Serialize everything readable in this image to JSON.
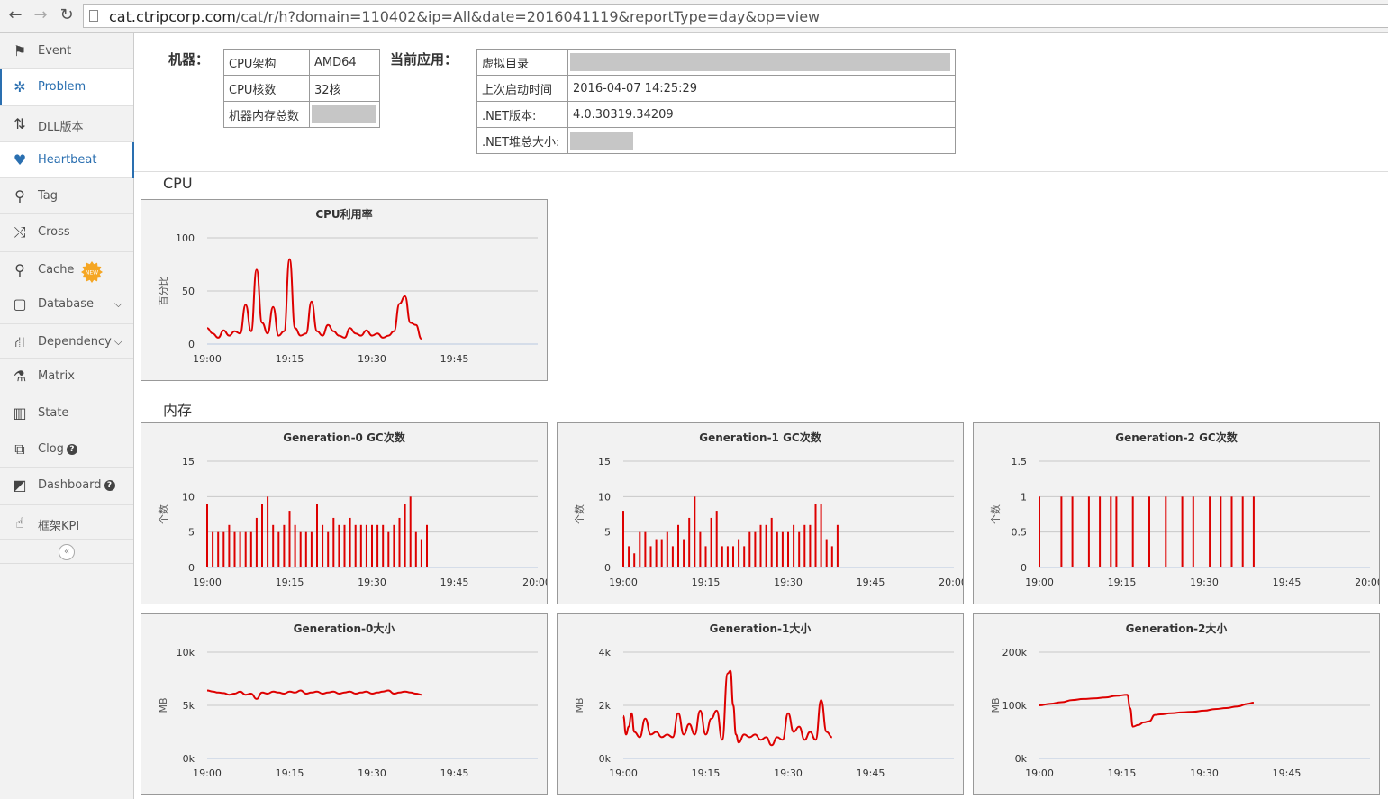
{
  "browser": {
    "url_host": "cat.ctripcorp.com",
    "url_path": "/cat/r/h?domain=110402&ip=All&date=2016041119&reportType=day&op=view"
  },
  "sidebar": {
    "items": [
      {
        "label": "Event",
        "icon": "flag-icon",
        "glyph": "⚑"
      },
      {
        "label": "Problem",
        "icon": "bug-icon",
        "glyph": "✲"
      },
      {
        "label": "DLL版本",
        "icon": "sort-icon",
        "glyph": "⇅"
      },
      {
        "label": "Heartbeat",
        "icon": "heart-icon",
        "glyph": "♥"
      },
      {
        "label": "Tag",
        "icon": "search-icon",
        "glyph": "⚲"
      },
      {
        "label": "Cross",
        "icon": "shuffle-icon",
        "glyph": "⤭"
      },
      {
        "label": "Cache",
        "icon": "search-icon",
        "glyph": "⚲",
        "badge": "NEW"
      },
      {
        "label": "Database",
        "icon": "database-icon",
        "glyph": "▢"
      },
      {
        "label": "Dependency",
        "icon": "road-icon",
        "glyph": "⛙"
      },
      {
        "label": "Matrix",
        "icon": "flask-icon",
        "glyph": "⚗"
      },
      {
        "label": "State",
        "icon": "bar-chart-icon",
        "glyph": "▥"
      },
      {
        "label": "Clog",
        "icon": "external-link-icon",
        "glyph": "⧉"
      },
      {
        "label": "Dashboard",
        "icon": "share-icon",
        "glyph": "◩"
      },
      {
        "label": "框架KPI",
        "icon": "thumbs-up-icon",
        "glyph": "☝"
      }
    ],
    "collapse_glyph": "«"
  },
  "machine": {
    "label": "机器：",
    "rows": [
      {
        "k": "CPU架构",
        "v": "AMD64"
      },
      {
        "k": "CPU核数",
        "v": "32核"
      },
      {
        "k": "机器内存总数",
        "v": ""
      }
    ]
  },
  "app": {
    "label": "当前应用：",
    "rows": [
      {
        "k": "虚拟目录",
        "v": ""
      },
      {
        "k": "上次启动时间",
        "v": "2016-04-07 14:25:29"
      },
      {
        "k": ".NET版本:",
        "v": "4.0.30319.34209"
      },
      {
        "k": ".NET堆总大小:",
        "v": ""
      }
    ]
  },
  "sections": {
    "cpu": "CPU",
    "memory": "内存"
  },
  "chart_data": [
    {
      "type": "line",
      "title": "CPU利用率",
      "ylabel": "百分比",
      "ylim": [
        0,
        100
      ],
      "yticks": [
        "0",
        "50",
        "100"
      ],
      "xticks": [
        "19:00",
        "19:15",
        "19:30",
        "19:45"
      ],
      "xlim_minutes": [
        0,
        50
      ],
      "x": [
        0,
        1,
        2,
        3,
        4,
        5,
        6,
        7,
        8,
        9,
        10,
        11,
        12,
        13,
        14,
        15,
        16,
        17,
        18,
        19,
        20,
        21,
        22,
        23,
        24,
        25,
        26,
        27,
        28,
        29,
        30,
        31,
        32,
        33,
        34,
        35,
        36,
        37,
        38,
        39
      ],
      "values": [
        15,
        10,
        6,
        13,
        8,
        12,
        10,
        37,
        12,
        70,
        20,
        10,
        35,
        8,
        12,
        80,
        15,
        8,
        10,
        40,
        12,
        8,
        18,
        12,
        8,
        6,
        15,
        10,
        8,
        13,
        8,
        10,
        6,
        8,
        12,
        38,
        45,
        20,
        18,
        5
      ]
    },
    {
      "type": "bar",
      "title": "Generation-0 GC次数",
      "ylabel": "个数",
      "ylim": [
        0,
        15
      ],
      "yticks": [
        "0",
        "5",
        "10",
        "15"
      ],
      "xticks": [
        "19:00",
        "19:15",
        "19:30",
        "19:45",
        "20:00"
      ],
      "xlim_minutes": [
        0,
        60
      ],
      "values": [
        9,
        5,
        5,
        5,
        6,
        5,
        5,
        5,
        5,
        7,
        9,
        10,
        6,
        5,
        6,
        8,
        6,
        5,
        5,
        5,
        9,
        6,
        5,
        7,
        6,
        6,
        7,
        6,
        6,
        6,
        6,
        6,
        6,
        5,
        6,
        7,
        9,
        10,
        5,
        4,
        6
      ]
    },
    {
      "type": "bar",
      "title": "Generation-1 GC次数",
      "ylabel": "个数",
      "ylim": [
        0,
        15
      ],
      "yticks": [
        "0",
        "5",
        "10",
        "15"
      ],
      "xticks": [
        "19:00",
        "19:15",
        "19:30",
        "19:45",
        "20:00"
      ],
      "xlim_minutes": [
        0,
        60
      ],
      "values": [
        8,
        3,
        2,
        5,
        5,
        3,
        4,
        4,
        5,
        3,
        6,
        4,
        7,
        10,
        5,
        3,
        7,
        8,
        3,
        3,
        3,
        4,
        3,
        5,
        5,
        6,
        6,
        7,
        5,
        5,
        5,
        6,
        5,
        6,
        6,
        9,
        9,
        4,
        3,
        6
      ]
    },
    {
      "type": "bar",
      "title": "Generation-2 GC次数",
      "ylabel": "个数",
      "ylim": [
        0,
        1.5
      ],
      "yticks": [
        "0",
        "0.5",
        "1",
        "1.5"
      ],
      "xticks": [
        "19:00",
        "19:15",
        "19:30",
        "19:45",
        "20:00"
      ],
      "xlim_minutes": [
        0,
        60
      ],
      "x": [
        0,
        4,
        6,
        9,
        11,
        13,
        14,
        17,
        20,
        23,
        26,
        28,
        31,
        33,
        35,
        37,
        39
      ],
      "values": [
        1,
        1,
        1,
        1,
        1,
        1,
        1,
        1,
        1,
        1,
        1,
        1,
        1,
        1,
        1,
        1,
        1
      ]
    },
    {
      "type": "line",
      "title": "Generation-0大小",
      "ylabel": "MB",
      "ylim": [
        0,
        10000
      ],
      "yticks": [
        "0k",
        "5k",
        "10k"
      ],
      "xticks": [
        "19:00",
        "19:15",
        "19:30",
        "19:45"
      ],
      "xlim_minutes": [
        0,
        50
      ],
      "x": [
        0,
        1,
        2,
        3,
        4,
        5,
        6,
        7,
        8,
        9,
        10,
        11,
        12,
        13,
        14,
        15,
        16,
        17,
        18,
        19,
        20,
        21,
        22,
        23,
        24,
        25,
        26,
        27,
        28,
        29,
        30,
        31,
        32,
        33,
        34,
        35,
        36,
        37,
        38,
        39
      ],
      "values": [
        6400,
        6300,
        6200,
        6150,
        6000,
        6100,
        6300,
        6000,
        6100,
        5600,
        6200,
        6100,
        6300,
        6200,
        6100,
        6300,
        6200,
        6400,
        6100,
        6200,
        6300,
        6100,
        6200,
        6300,
        6100,
        6200,
        6300,
        6100,
        6200,
        6300,
        6100,
        6200,
        6300,
        6400,
        6100,
        6200,
        6300,
        6200,
        6100,
        6000
      ]
    },
    {
      "type": "line",
      "title": "Generation-1大小",
      "ylabel": "MB",
      "ylim": [
        0,
        4000
      ],
      "yticks": [
        "0k",
        "2k",
        "4k"
      ],
      "xticks": [
        "19:00",
        "19:15",
        "19:30",
        "19:45"
      ],
      "xlim_minutes": [
        0,
        45
      ],
      "x": [
        0,
        0.5,
        1,
        1.5,
        2,
        3,
        4,
        5,
        6,
        7,
        8,
        9,
        10,
        11,
        12,
        13,
        14,
        15,
        16,
        17,
        18,
        19,
        19.5,
        20,
        20.5,
        21,
        22,
        23,
        24,
        25,
        26,
        27,
        28,
        29,
        30,
        31,
        32,
        33,
        34,
        35,
        36,
        37,
        38
      ],
      "values": [
        1600,
        900,
        1200,
        1700,
        1000,
        800,
        1500,
        900,
        1000,
        800,
        900,
        800,
        1700,
        900,
        1300,
        900,
        1800,
        900,
        1500,
        1800,
        700,
        3200,
        3300,
        2000,
        900,
        600,
        900,
        800,
        900,
        700,
        800,
        500,
        800,
        700,
        1700,
        1000,
        1200,
        700,
        1000,
        700,
        2200,
        1000,
        800
      ]
    },
    {
      "type": "line",
      "title": "Generation-2大小",
      "ylabel": "MB",
      "ylim": [
        0,
        200000
      ],
      "yticks": [
        "0k",
        "100k",
        "200k"
      ],
      "xticks": [
        "19:00",
        "19:15",
        "19:30",
        "19:45"
      ],
      "xlim_minutes": [
        0,
        50
      ],
      "x": [
        0,
        2,
        4,
        6,
        8,
        10,
        12,
        14,
        16,
        16.5,
        17,
        18,
        19,
        20,
        21,
        22,
        24,
        26,
        28,
        30,
        32,
        34,
        36,
        38,
        39
      ],
      "values": [
        100000,
        103000,
        106000,
        110000,
        112000,
        113000,
        115000,
        118000,
        120000,
        95000,
        60000,
        63000,
        68000,
        70000,
        82000,
        83000,
        85000,
        87000,
        88000,
        90000,
        93000,
        95000,
        98000,
        103000,
        105000
      ]
    }
  ]
}
